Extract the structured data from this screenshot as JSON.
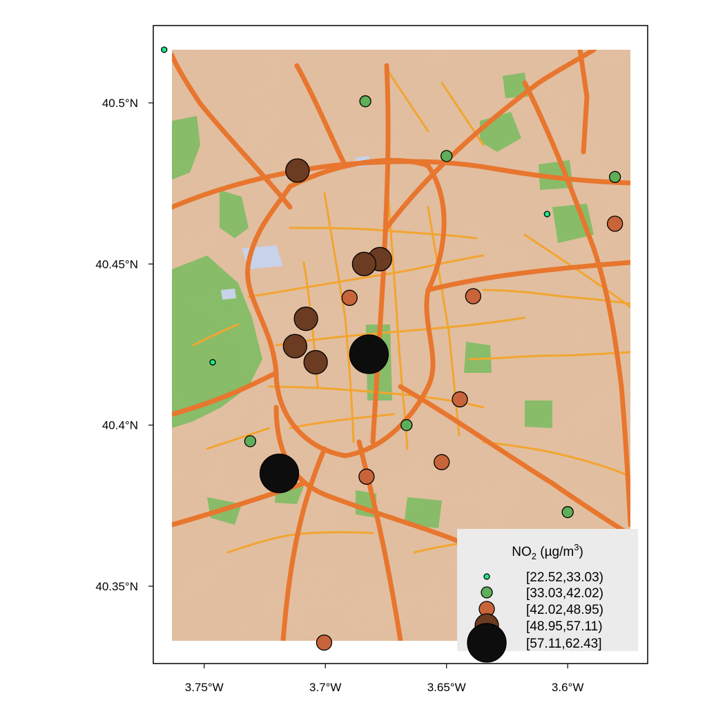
{
  "axes": {
    "x_ticks": [
      {
        "value": -3.75,
        "label": "3.75°W"
      },
      {
        "value": -3.7,
        "label": "3.7°W"
      },
      {
        "value": -3.65,
        "label": "3.65°W"
      },
      {
        "value": -3.6,
        "label": "3.6°W"
      }
    ],
    "y_ticks": [
      {
        "value": 40.5,
        "label": "40.5°N"
      },
      {
        "value": 40.45,
        "label": "40.45°N"
      },
      {
        "value": 40.4,
        "label": "40.4°N"
      },
      {
        "value": 40.35,
        "label": "40.35°N"
      }
    ],
    "xlim": [
      -3.771,
      -3.567
    ],
    "ylim": [
      40.326,
      40.524
    ]
  },
  "legend": {
    "title": "NO2 (µg/m3)",
    "title_parts": {
      "pre": "NO",
      "sub": "2",
      "mid": " (µg/m",
      "sup": "3",
      "post": ")"
    },
    "classes": [
      {
        "label": "[22.52,33.03)",
        "color": "#1de88a"
      },
      {
        "label": "[33.03,42.02)",
        "color": "#5fae5a"
      },
      {
        "label": "[42.02,48.95)",
        "color": "#c8643a"
      },
      {
        "label": "[48.95,57.11)",
        "color": "#6b3b22"
      },
      {
        "label": "[57.11,62.43]",
        "color": "#0d0d0d"
      }
    ]
  },
  "map_colors": {
    "background": "#dcb89a",
    "park": "#78bc5f",
    "water": "#c8d2ea",
    "major_road": "#e8762e",
    "minor_road": "#f2a530"
  },
  "chart_data": {
    "type": "scatter",
    "title": "",
    "xlabel": "",
    "ylabel": "",
    "value_name": "NO2 class",
    "points": [
      {
        "lon": -3.7665,
        "lat": 40.5165,
        "class": 0
      },
      {
        "lon": -3.6835,
        "lat": 40.5005,
        "class": 1
      },
      {
        "lon": -3.7115,
        "lat": 40.479,
        "class": 3
      },
      {
        "lon": -3.65,
        "lat": 40.4835,
        "class": 1
      },
      {
        "lon": -3.5805,
        "lat": 40.477,
        "class": 1
      },
      {
        "lon": -3.6085,
        "lat": 40.4655,
        "class": 0
      },
      {
        "lon": -3.5805,
        "lat": 40.4625,
        "class": 2
      },
      {
        "lon": -3.6775,
        "lat": 40.4515,
        "class": 3
      },
      {
        "lon": -3.684,
        "lat": 40.45,
        "class": 3
      },
      {
        "lon": -3.69,
        "lat": 40.4395,
        "class": 2
      },
      {
        "lon": -3.639,
        "lat": 40.44,
        "class": 2
      },
      {
        "lon": -3.708,
        "lat": 40.433,
        "class": 3
      },
      {
        "lon": -3.7125,
        "lat": 40.4245,
        "class": 3
      },
      {
        "lon": -3.704,
        "lat": 40.4195,
        "class": 3
      },
      {
        "lon": -3.682,
        "lat": 40.422,
        "class": 4
      },
      {
        "lon": -3.7465,
        "lat": 40.4195,
        "class": 0
      },
      {
        "lon": -3.6445,
        "lat": 40.408,
        "class": 2
      },
      {
        "lon": -3.6665,
        "lat": 40.4,
        "class": 1
      },
      {
        "lon": -3.731,
        "lat": 40.395,
        "class": 1
      },
      {
        "lon": -3.652,
        "lat": 40.3885,
        "class": 2
      },
      {
        "lon": -3.719,
        "lat": 40.385,
        "class": 4
      },
      {
        "lon": -3.683,
        "lat": 40.384,
        "class": 2
      },
      {
        "lon": -3.6,
        "lat": 40.373,
        "class": 1
      },
      {
        "lon": -3.7005,
        "lat": 40.3325,
        "class": 2
      }
    ]
  }
}
